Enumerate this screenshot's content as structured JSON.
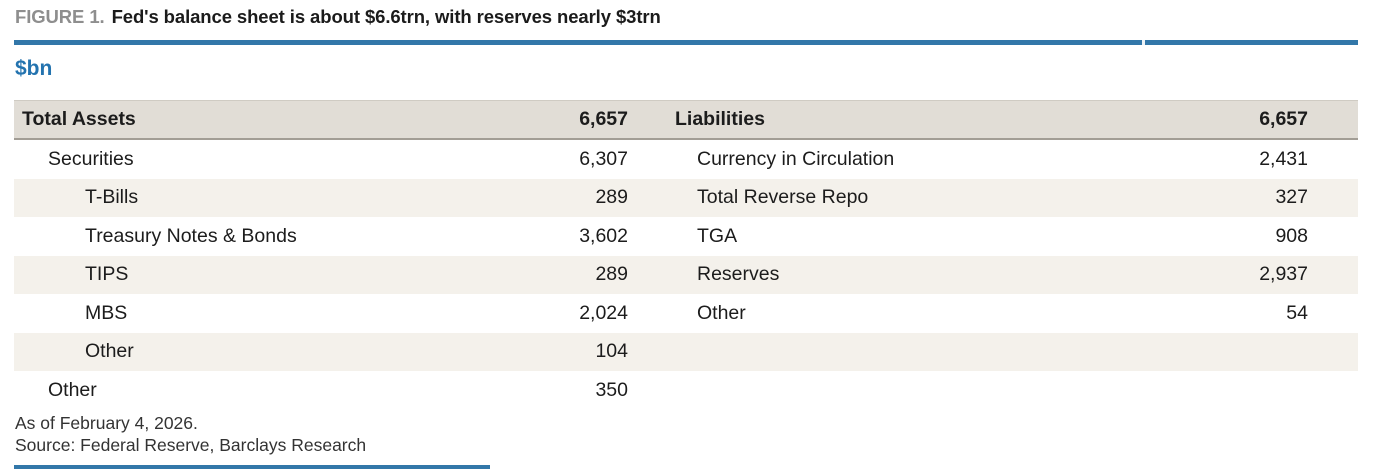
{
  "figure": {
    "label": "FIGURE 1.",
    "title": "Fed's balance sheet is about $6.6trn, with reserves nearly $3trn",
    "unit": "$bn"
  },
  "table": {
    "assets": {
      "header": {
        "label": "Total Assets",
        "value": "6,657"
      },
      "rows": [
        {
          "label": "Securities",
          "value": "6,307"
        },
        {
          "label": "T-Bills",
          "value": "289"
        },
        {
          "label": "Treasury Notes & Bonds",
          "value": "3,602"
        },
        {
          "label": "TIPS",
          "value": "289"
        },
        {
          "label": "MBS",
          "value": "2,024"
        },
        {
          "label": "Other",
          "value": "104"
        },
        {
          "label": "Other",
          "value": "350"
        }
      ]
    },
    "liabilities": {
      "header": {
        "label": "Liabilities",
        "value": "6,657"
      },
      "rows": [
        {
          "label": "Currency in Circulation",
          "value": "2,431"
        },
        {
          "label": "Total Reverse Repo",
          "value": "327"
        },
        {
          "label": "TGA",
          "value": "908"
        },
        {
          "label": "Reserves",
          "value": "2,937"
        },
        {
          "label": "Other",
          "value": "54"
        },
        {
          "label": "",
          "value": ""
        },
        {
          "label": "",
          "value": ""
        }
      ]
    }
  },
  "footer": {
    "as_of": "As of February 4, 2026.",
    "source": "Source: Federal Reserve, Barclays Research"
  },
  "colors": {
    "accent_blue": "#3277a9",
    "unit_blue": "#2373af",
    "figure_label_gray": "#8e8e8e",
    "header_row_bg": "#e1ddd6",
    "stripe_row_bg": "#f4f1eb",
    "header_border": "#a29d95",
    "text": "#1c1c1c"
  },
  "chart_data": {
    "type": "table",
    "title": "Fed's balance sheet is about $6.6trn, with reserves nearly $3trn",
    "unit": "$bn",
    "as_of": "February 4, 2026",
    "source": "Federal Reserve, Barclays Research",
    "sections": [
      {
        "name": "Total Assets",
        "total": 6657,
        "rows": [
          {
            "item": "Securities",
            "value": 6307,
            "indent": 1
          },
          {
            "item": "T-Bills",
            "value": 289,
            "indent": 2
          },
          {
            "item": "Treasury Notes & Bonds",
            "value": 3602,
            "indent": 2
          },
          {
            "item": "TIPS",
            "value": 289,
            "indent": 2
          },
          {
            "item": "MBS",
            "value": 2024,
            "indent": 2
          },
          {
            "item": "Other",
            "value": 104,
            "indent": 2
          },
          {
            "item": "Other",
            "value": 350,
            "indent": 1
          }
        ]
      },
      {
        "name": "Liabilities",
        "total": 6657,
        "rows": [
          {
            "item": "Currency in Circulation",
            "value": 2431,
            "indent": 1
          },
          {
            "item": "Total Reverse Repo",
            "value": 327,
            "indent": 1
          },
          {
            "item": "TGA",
            "value": 908,
            "indent": 1
          },
          {
            "item": "Reserves",
            "value": 2937,
            "indent": 1
          },
          {
            "item": "Other",
            "value": 54,
            "indent": 1
          }
        ]
      }
    ]
  }
}
